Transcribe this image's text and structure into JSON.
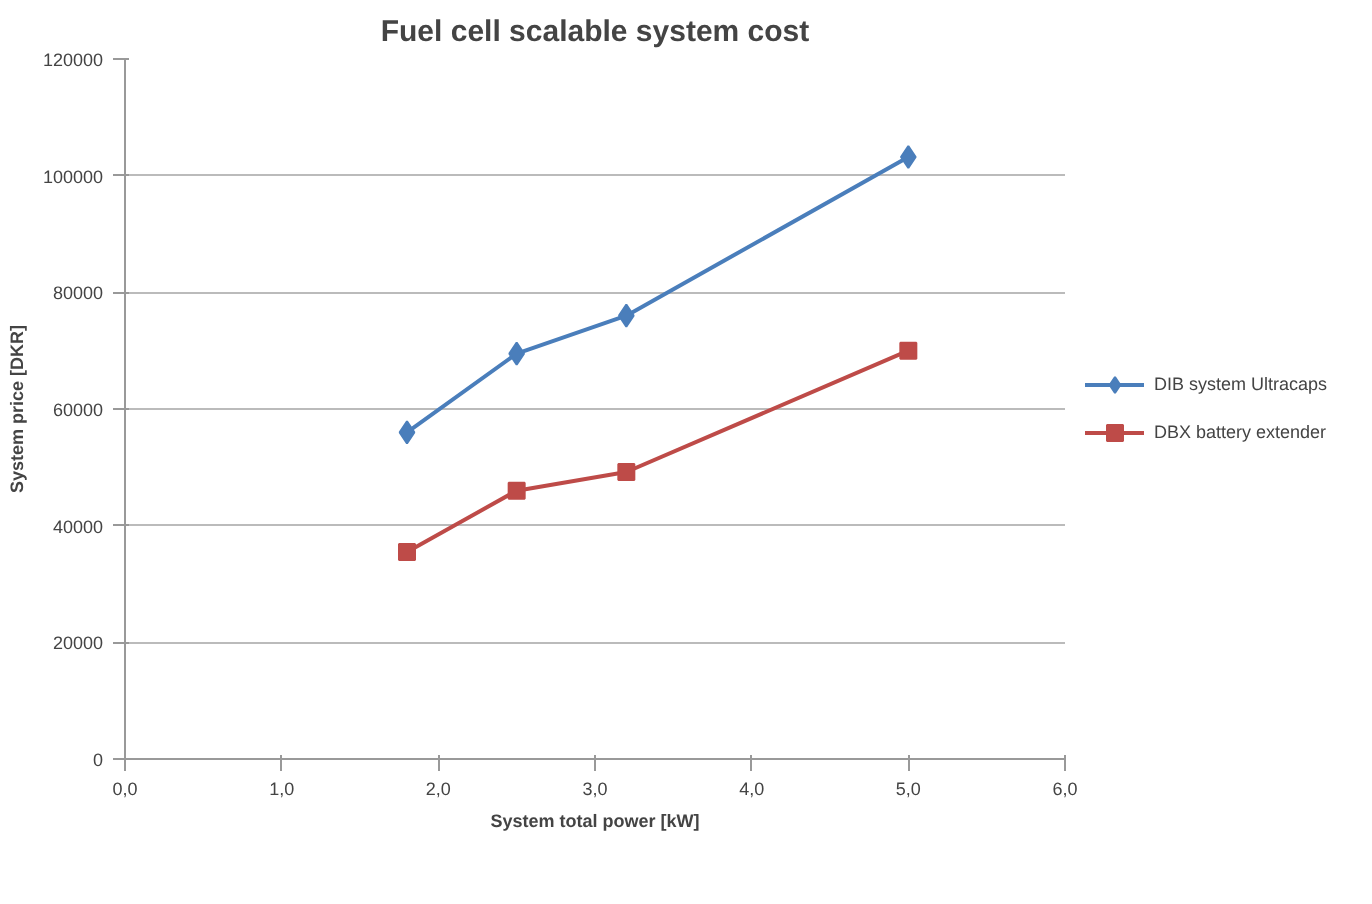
{
  "chart_data": {
    "type": "line",
    "title": "Fuel cell scalable system cost",
    "xlabel": "System total power [kW]",
    "ylabel": "System price [DKR]",
    "x": [
      1.8,
      2.5,
      3.2,
      5.0
    ],
    "series": [
      {
        "name": "DIB system Ultracaps",
        "color": "#4a7ebb",
        "marker": "diamond",
        "values": [
          56000,
          69500,
          76000,
          103200
        ]
      },
      {
        "name": "DBX battery extender",
        "color": "#be4b48",
        "marker": "square",
        "values": [
          35500,
          46000,
          49200,
          70000
        ]
      }
    ],
    "xlim": [
      0,
      6
    ],
    "xticks": [
      {
        "value": 0,
        "label": "0,0"
      },
      {
        "value": 1,
        "label": "1,0"
      },
      {
        "value": 2,
        "label": "2,0"
      },
      {
        "value": 3,
        "label": "3,0"
      },
      {
        "value": 4,
        "label": "4,0"
      },
      {
        "value": 5,
        "label": "5,0"
      },
      {
        "value": 6,
        "label": "6,0"
      }
    ],
    "ylim": [
      0,
      120000
    ],
    "yticks": [
      0,
      20000,
      40000,
      60000,
      80000,
      100000,
      120000
    ],
    "grid": "y",
    "legend": "right",
    "line_style": "solid"
  }
}
